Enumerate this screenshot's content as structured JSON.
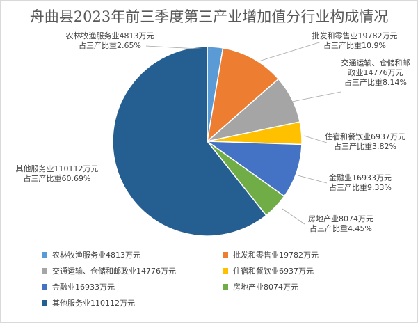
{
  "title": "舟曲县2023年前三季度第三产业增加值分行业构成情况",
  "chart_data": {
    "type": "pie",
    "title": "舟曲县2023年前三季度第三产业增加值分行业构成情况",
    "slices": [
      {
        "name": "农林牧渔服务业",
        "value": 4813,
        "unit": "万元",
        "share": "2.65%",
        "color": "#5b9bd5",
        "label1": "农林牧渔服务业4813万元",
        "label2": "占三产比重2.65%",
        "legend": "农林牧渔服务业4813万元"
      },
      {
        "name": "批发和零售业",
        "value": 19782,
        "unit": "万元",
        "share": "10.9%",
        "color": "#ed7d31",
        "label1": "批发和零售业19782万元",
        "label2": "占三产比重10.9%",
        "legend": "批发和零售业19782万元"
      },
      {
        "name": "交通运输、仓储和邮政业",
        "value": 14776,
        "unit": "万元",
        "share": "8.14%",
        "color": "#a5a5a5",
        "label0": "交通运输、仓储和邮",
        "label1": "政业14776万元",
        "label2": "占三产比重8.14%",
        "legend": "交通运输、仓储和邮政业14776万元"
      },
      {
        "name": "住宿和餐饮业",
        "value": 6937,
        "unit": "万元",
        "share": "3.82%",
        "color": "#ffc000",
        "label1": "住宿和餐饮业6937万元",
        "label2": "占三产比重3.82%",
        "legend": "住宿和餐饮业6937万元"
      },
      {
        "name": "金融业",
        "value": 16933,
        "unit": "万元",
        "share": "9.33%",
        "color": "#4472c4",
        "label1": "金融业16933万元",
        "label2": "占三产比重9.33%",
        "legend": "金融业16933万元"
      },
      {
        "name": "房地产业",
        "value": 8074,
        "unit": "万元",
        "share": "4.45%",
        "color": "#70ad47",
        "label1": "房地产业8074万元",
        "label2": "占三产比重4.45%",
        "legend": "房地产业8074万元"
      },
      {
        "name": "其他服务业",
        "value": 110112,
        "unit": "万元",
        "share": "60.69%",
        "color": "#255e91",
        "label1": "其他服务业110112万元",
        "label2": "占三产比重60.69%",
        "legend": "其他服务业110112万元"
      }
    ],
    "legend_position": "bottom"
  }
}
